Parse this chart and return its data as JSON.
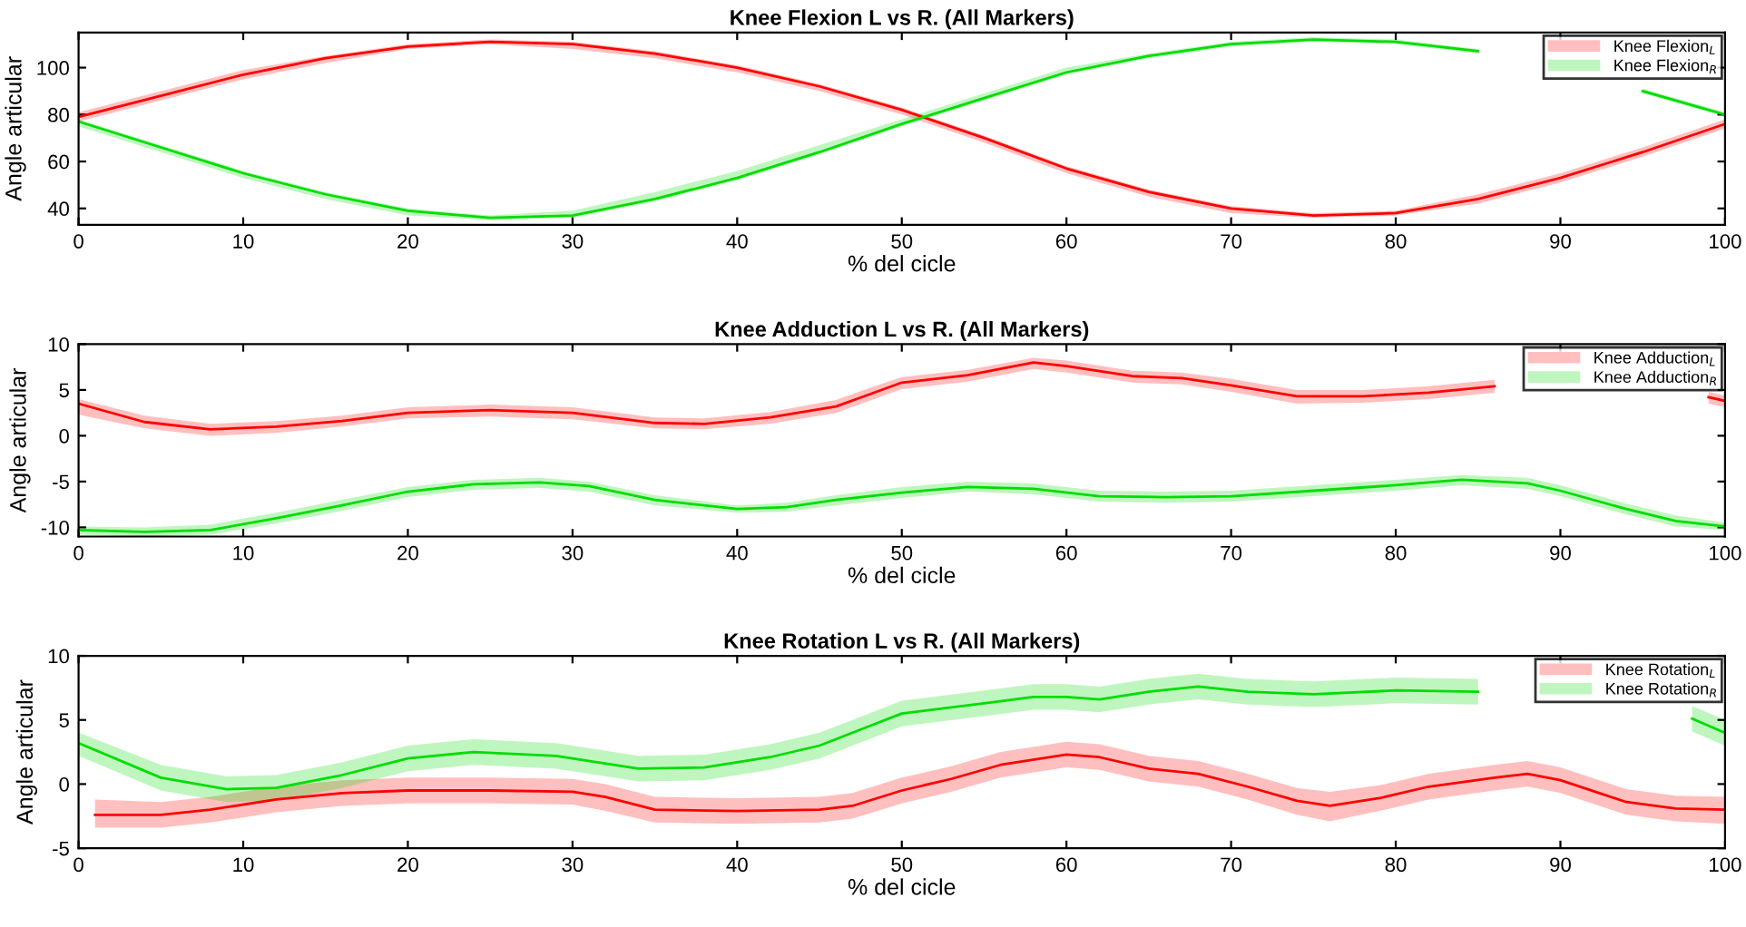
{
  "chart_data": [
    {
      "type": "line",
      "title": "Knee Flexion L vs R. (All Markers)",
      "xlabel": "% del cicle",
      "ylabel": "Angle articular",
      "xlim": [
        0,
        100
      ],
      "xticks": [
        0,
        10,
        20,
        30,
        40,
        50,
        60,
        70,
        80,
        90,
        100
      ],
      "ylim": [
        33,
        115
      ],
      "yticks": [
        40,
        60,
        80,
        100
      ],
      "legend": "top right",
      "grid": false,
      "series": [
        {
          "name": "Knee Flexion$_{L}$",
          "color": "#ff0000",
          "x": [
            0,
            5,
            10,
            15,
            20,
            25,
            30,
            35,
            40,
            45,
            50,
            55,
            60,
            65,
            70,
            75,
            80,
            85,
            90,
            95,
            100
          ],
          "values": [
            79,
            88,
            97,
            104,
            109,
            111,
            110,
            106,
            100,
            92,
            82,
            70,
            57,
            47,
            40,
            37,
            38,
            44,
            53,
            64,
            76
          ],
          "lower": [
            77,
            86,
            95,
            102,
            108,
            110,
            108,
            104,
            98,
            90,
            80,
            68,
            55,
            45,
            38,
            36,
            37,
            42,
            51,
            62,
            74
          ],
          "upper": [
            81,
            90,
            99,
            105,
            110,
            112,
            111,
            107,
            101,
            93,
            83,
            71,
            58,
            48,
            41,
            38,
            39,
            46,
            55,
            66,
            78
          ]
        },
        {
          "name": "Knee Flexion$_{R}$",
          "color": "#00dd00",
          "x": [
            0,
            5,
            10,
            15,
            20,
            25,
            30,
            35,
            40,
            45,
            50,
            55,
            60,
            65,
            70,
            75,
            80,
            85,
            90,
            95,
            100
          ],
          "values": [
            77,
            66,
            55,
            46,
            39,
            36,
            37,
            44,
            53,
            64,
            76,
            87,
            98,
            105,
            110,
            112,
            111,
            107,
            null,
            90,
            80
          ],
          "lower": [
            75,
            64,
            53,
            44,
            37,
            35,
            36,
            43,
            52,
            63,
            75,
            86,
            97,
            104,
            109,
            111,
            110,
            106,
            null,
            89,
            79
          ],
          "upper": [
            78,
            67,
            56,
            47,
            40,
            37,
            39,
            47,
            56,
            67,
            78,
            89,
            100,
            106,
            111,
            113,
            112,
            108,
            null,
            91,
            81
          ]
        }
      ]
    },
    {
      "type": "line",
      "title": "Knee Adduction L vs R. (All Markers)",
      "xlabel": "% del cicle",
      "ylabel": "Angle articular",
      "xlim": [
        0,
        100
      ],
      "xticks": [
        0,
        10,
        20,
        30,
        40,
        50,
        60,
        70,
        80,
        90,
        100
      ],
      "ylim": [
        -11,
        10
      ],
      "yticks": [
        -10,
        -5,
        0,
        5,
        10
      ],
      "legend": "top right",
      "grid": false,
      "series": [
        {
          "name": "Knee Adduction$_{L}$",
          "color": "#ff0000",
          "x": [
            0,
            4,
            8,
            12,
            16,
            20,
            25,
            30,
            35,
            38,
            42,
            46,
            48,
            50,
            54,
            58,
            60,
            64,
            67,
            70,
            74,
            78,
            82,
            86,
            90,
            94,
            98,
            99,
            100
          ],
          "values": [
            3.5,
            1.5,
            0.7,
            1,
            1.6,
            2.5,
            2.8,
            2.5,
            1.4,
            1.3,
            2,
            3.2,
            4.5,
            5.8,
            6.6,
            8,
            7.6,
            6.5,
            6.3,
            5.5,
            4.3,
            4.3,
            4.7,
            5.4,
            null,
            null,
            null,
            4.2,
            3.8
          ],
          "lower": [
            2.3,
            0.8,
            0,
            0.3,
            1,
            1.9,
            2.1,
            1.8,
            0.8,
            0.7,
            1.3,
            2.5,
            3.8,
            5.1,
            5.9,
            7.3,
            6.9,
            5.8,
            5.6,
            4.8,
            3.5,
            3.6,
            4,
            4.7,
            null,
            null,
            null,
            3.5,
            3.1
          ],
          "upper": [
            4,
            2.2,
            1.3,
            1.6,
            2.2,
            3.1,
            3.4,
            3.1,
            2,
            1.9,
            2.6,
            3.9,
            5.2,
            6.4,
            7.2,
            8.5,
            8.2,
            7.1,
            6.9,
            6.2,
            5,
            5,
            5.4,
            6.1,
            null,
            null,
            null,
            4.8,
            4.4
          ]
        },
        {
          "name": "Knee Adduction$_{R}$",
          "color": "#00dd00",
          "x": [
            0,
            4,
            8,
            12,
            16,
            20,
            24,
            28,
            31,
            35,
            40,
            43,
            46,
            50,
            54,
            58,
            62,
            66,
            70,
            75,
            80,
            84,
            88,
            90,
            94,
            97,
            100
          ],
          "values": [
            -10.3,
            -10.5,
            -10.3,
            -9,
            -7.6,
            -6.1,
            -5.3,
            -5.1,
            -5.5,
            -7,
            -8,
            -7.8,
            -7,
            -6.2,
            -5.6,
            -5.8,
            -6.6,
            -6.7,
            -6.6,
            -6,
            -5.4,
            -4.8,
            -5.2,
            -6,
            -8,
            -9.3,
            -9.9
          ],
          "lower": [
            -10.8,
            -11,
            -10.8,
            -9.6,
            -8.2,
            -6.7,
            -5.9,
            -5.7,
            -6.1,
            -7.6,
            -8.4,
            -8.3,
            -7.6,
            -6.8,
            -6.1,
            -6.4,
            -7.2,
            -7.3,
            -7.2,
            -6.6,
            -6,
            -5.4,
            -5.8,
            -6.6,
            -8.6,
            -9.9,
            -10.3
          ],
          "upper": [
            -9.9,
            -10,
            -9.7,
            -8.4,
            -7,
            -5.6,
            -4.8,
            -4.6,
            -5,
            -6.5,
            -7.6,
            -7.3,
            -6.5,
            -5.6,
            -5,
            -5.2,
            -6,
            -6.1,
            -6,
            -5.4,
            -4.8,
            -4.3,
            -4.6,
            -5.4,
            -7.4,
            -8.7,
            -9.5
          ]
        }
      ]
    },
    {
      "type": "line",
      "title": "Knee Rotation L vs R. (All Markers)",
      "xlabel": "% del cicle",
      "ylabel": "Angle articular",
      "xlim": [
        0,
        100
      ],
      "xticks": [
        0,
        10,
        20,
        30,
        40,
        50,
        60,
        70,
        80,
        90,
        100
      ],
      "ylim": [
        -5,
        10
      ],
      "yticks": [
        -5,
        0,
        5,
        10
      ],
      "legend": "top right",
      "grid": false,
      "series": [
        {
          "name": "Knee Rotation$_{L}$",
          "color": "#ff0000",
          "x": [
            1,
            5,
            8,
            12,
            16,
            20,
            25,
            30,
            32,
            35,
            40,
            45,
            47,
            50,
            53,
            56,
            60,
            62,
            65,
            68,
            71,
            74,
            76,
            79,
            82,
            86,
            88,
            90,
            94,
            97,
            100
          ],
          "values": [
            -2.4,
            -2.4,
            -2,
            -1.2,
            -0.7,
            -0.5,
            -0.5,
            -0.6,
            -1,
            -2,
            -2.1,
            -2,
            -1.7,
            -0.5,
            0.4,
            1.5,
            2.3,
            2.1,
            1.2,
            0.8,
            -0.2,
            -1.3,
            -1.7,
            -1.1,
            -0.2,
            0.5,
            0.8,
            0.3,
            -1.4,
            -1.9,
            -2
          ],
          "lower": [
            -3.4,
            -3.4,
            -3,
            -2.2,
            -1.7,
            -1.5,
            -1.5,
            -1.6,
            -2.1,
            -3,
            -3.1,
            -3,
            -2.7,
            -1.5,
            -0.6,
            0.5,
            1.3,
            1.1,
            0.2,
            -0.2,
            -1.2,
            -2.4,
            -2.9,
            -2.1,
            -1.2,
            -0.5,
            -0.2,
            -0.7,
            -2.4,
            -2.9,
            -3.1
          ],
          "upper": [
            -1.2,
            -1.4,
            -1,
            -0.2,
            0.3,
            0.5,
            0.5,
            0.4,
            0,
            -1,
            -1.1,
            -1,
            -0.7,
            0.5,
            1.4,
            2.5,
            3.3,
            3.1,
            2.2,
            1.8,
            0.8,
            -0.3,
            -0.6,
            -0.1,
            0.8,
            1.5,
            1.8,
            1.3,
            -0.4,
            -0.9,
            -1
          ]
        },
        {
          "name": "Knee Rotation$_{R}$",
          "color": "#00dd00",
          "x": [
            0,
            5,
            9,
            12,
            16,
            20,
            24,
            29,
            34,
            38,
            42,
            45,
            48,
            50,
            55,
            58,
            60,
            62,
            65,
            68,
            71,
            75,
            80,
            85,
            88,
            92,
            98,
            100
          ],
          "values": [
            3.2,
            0.5,
            -0.4,
            -0.3,
            0.7,
            2,
            2.5,
            2.2,
            1.2,
            1.3,
            2.1,
            3,
            4.5,
            5.5,
            6.3,
            6.8,
            6.8,
            6.6,
            7.2,
            7.6,
            7.2,
            7,
            7.3,
            7.2,
            null,
            null,
            5.1,
            4
          ],
          "lower": [
            2.2,
            -0.5,
            -1.4,
            -1.3,
            -0.3,
            1,
            1.5,
            1.2,
            0.2,
            0.3,
            1.1,
            2,
            3.5,
            4.5,
            5.3,
            5.8,
            5.8,
            5.6,
            6.2,
            6.6,
            6.2,
            6,
            6.3,
            6.2,
            null,
            null,
            4.1,
            3
          ],
          "upper": [
            4,
            1.5,
            0.6,
            0.7,
            1.7,
            3,
            3.5,
            3.2,
            2.2,
            2.3,
            3.1,
            4,
            5.5,
            6.5,
            7.3,
            7.8,
            7.8,
            7.6,
            8.2,
            8.6,
            8.2,
            8,
            8.3,
            8.2,
            null,
            null,
            6.1,
            5
          ]
        }
      ]
    }
  ]
}
